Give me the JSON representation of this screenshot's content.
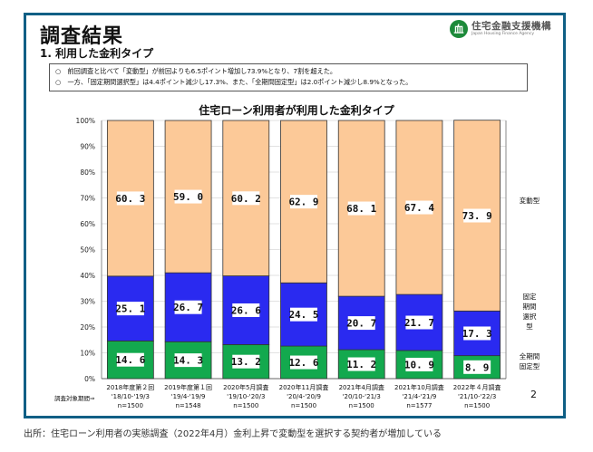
{
  "header": {
    "title": "調査結果",
    "subtitle": "1. 利用した金利タイプ",
    "logo_mark": "血",
    "logo_jp": "住宅金融支援機構",
    "logo_en": "Japan Housing Finance Agency"
  },
  "summary": [
    "○　前回調査と比べて「変動型」が前回よりも6.5ポイント増加し73.9%となり、7割を超えた。",
    "○　一方、「固定期間選択型」は4.4ポイント減少し17.3%、また、「全期間固定型」は2.0ポイント減少し8.9%となった。"
  ],
  "period_label": "調査対象期間⇒",
  "page_number": "2",
  "source": "出所：住宅ローン利用者の実態調査（2022年4月）金利上昇で変動型を選択する契約者が増加している",
  "colors": {
    "variable": "#fcc998",
    "fixed_period": "#2a2af0",
    "full_fixed": "#13a94e",
    "frame": "#0f5f85"
  },
  "chart_data": {
    "type": "bar",
    "stacked": true,
    "title": "住宅ローン利用者が利用した金利タイプ",
    "xlabel": "",
    "ylabel": "",
    "ylim": [
      0,
      100
    ],
    "yticks": [
      "0%",
      "10%",
      "20%",
      "30%",
      "40%",
      "50%",
      "60%",
      "70%",
      "80%",
      "90%",
      "100%"
    ],
    "grid": true,
    "legend_position": "right",
    "categories": [
      {
        "name": "2018年度第２回",
        "period": "'18/10-'19/3",
        "n": "n=1500"
      },
      {
        "name": "2019年度第１回",
        "period": "'19/4-'19/9",
        "n": "n=1548"
      },
      {
        "name": "2020年5月調査",
        "period": "'19/10-'20/3",
        "n": "n=1500"
      },
      {
        "name": "2020年11月調査",
        "period": "'20/4-'20/9",
        "n": "n=1500"
      },
      {
        "name": "2021年4月調査",
        "period": "'20/10-'21/3",
        "n": "n=1500"
      },
      {
        "name": "2021年10月調査",
        "period": "'21/4-'21/9",
        "n": "n=1577"
      },
      {
        "name": "2022年４月調査",
        "period": "'21/10-'22/3",
        "n": "n=1500"
      }
    ],
    "series": [
      {
        "name": "全期間固定型",
        "legend": [
          "全期間",
          "固定型"
        ],
        "values": [
          14.6,
          14.3,
          13.2,
          12.6,
          11.2,
          10.9,
          8.9
        ]
      },
      {
        "name": "固定期間選択型",
        "legend": [
          "固定",
          "期間",
          "選択",
          "型"
        ],
        "values": [
          25.1,
          26.7,
          26.6,
          24.5,
          20.7,
          21.7,
          17.3
        ]
      },
      {
        "name": "変動型",
        "legend": [
          "変動型"
        ],
        "values": [
          60.3,
          59.0,
          60.2,
          62.9,
          68.1,
          67.4,
          73.9
        ]
      }
    ]
  }
}
